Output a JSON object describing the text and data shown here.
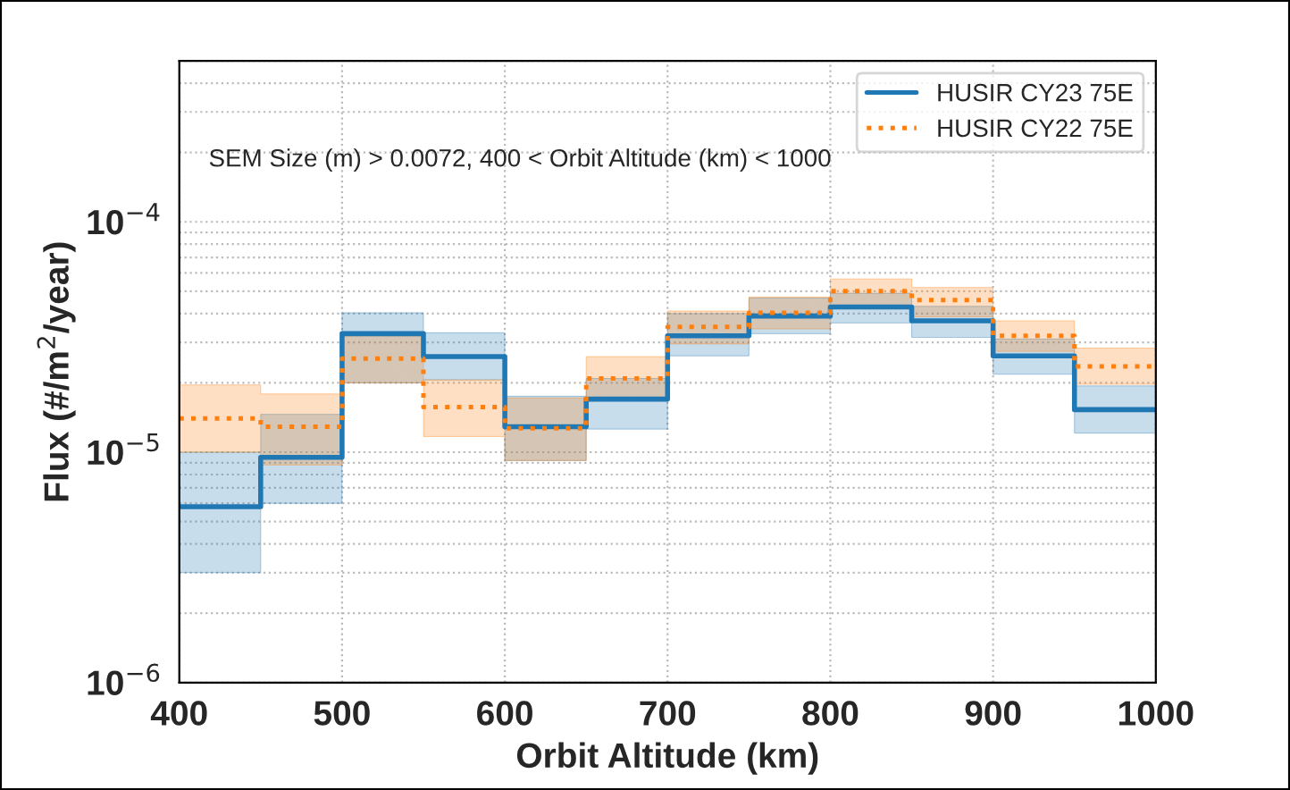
{
  "chart_data": {
    "type": "line",
    "xlabel": "Orbit Altitude (km)",
    "ylabel": "Flux (#/m$^{2}$/year)",
    "annotations": [
      "SEM Size (m) > 0.0072, 400 < Orbit Altitude (km) < 1000"
    ],
    "x": [
      400,
      450,
      450,
      500,
      500,
      550,
      550,
      600,
      600,
      650,
      650,
      700,
      700,
      750,
      750,
      800,
      800,
      850,
      850,
      900,
      900,
      950,
      950,
      1000
    ],
    "series": [
      {
        "name": "HUSIR CY23 75E",
        "color": "#1f77b4",
        "line_style": "solid",
        "values": [
          5.8e-06,
          5.8e-06,
          9.5e-06,
          9.5e-06,
          3.27e-05,
          3.27e-05,
          2.6e-05,
          2.6e-05,
          1.29e-05,
          1.29e-05,
          1.7e-05,
          1.7e-05,
          3.2e-05,
          3.2e-05,
          3.9e-05,
          3.9e-05,
          4.27e-05,
          4.27e-05,
          3.72e-05,
          3.72e-05,
          2.62e-05,
          2.62e-05,
          1.53e-05,
          1.53e-05
        ],
        "lower": [
          3e-06,
          3e-06,
          6e-06,
          6e-06,
          2e-05,
          2e-05,
          2.06e-05,
          2.06e-05,
          9.2e-06,
          9.2e-06,
          1.26e-05,
          1.26e-05,
          2.62e-05,
          2.62e-05,
          3.27e-05,
          3.27e-05,
          3.64e-05,
          3.64e-05,
          3.15e-05,
          3.15e-05,
          2.18e-05,
          2.18e-05,
          1.21e-05,
          1.21e-05
        ],
        "upper": [
          1e-05,
          1e-05,
          1.46e-05,
          1.46e-05,
          4.03e-05,
          4.03e-05,
          3.3e-05,
          3.3e-05,
          1.75e-05,
          1.75e-05,
          2.09e-05,
          2.09e-05,
          4e-05,
          4e-05,
          4.67e-05,
          4.67e-05,
          4.9e-05,
          4.9e-05,
          4.3e-05,
          4.3e-05,
          3.1e-05,
          3.1e-05,
          1.94e-05,
          1.94e-05
        ]
      },
      {
        "name": "HUSIR CY22 75E",
        "color": "#ff7f0e",
        "line_style": "dotted",
        "values": [
          1.4e-05,
          1.4e-05,
          1.29e-05,
          1.29e-05,
          2.55e-05,
          2.55e-05,
          1.57e-05,
          1.57e-05,
          1.27e-05,
          1.27e-05,
          2.09e-05,
          2.09e-05,
          3.5e-05,
          3.5e-05,
          4.03e-05,
          4.03e-05,
          5e-05,
          5e-05,
          4.58e-05,
          4.58e-05,
          3.2e-05,
          3.2e-05,
          2.36e-05,
          2.36e-05
        ],
        "lower": [
          1e-05,
          1e-05,
          8.8e-06,
          8.8e-06,
          2e-05,
          2e-05,
          1.17e-05,
          1.17e-05,
          9.2e-06,
          9.2e-06,
          1.7e-05,
          1.7e-05,
          2.95e-05,
          2.95e-05,
          3.43e-05,
          3.43e-05,
          4.19e-05,
          4.19e-05,
          3.87e-05,
          3.87e-05,
          2.74e-05,
          2.74e-05,
          1.97e-05,
          1.97e-05
        ],
        "upper": [
          1.96e-05,
          1.96e-05,
          1.79e-05,
          1.79e-05,
          3.2e-05,
          3.2e-05,
          2.06e-05,
          2.06e-05,
          1.72e-05,
          1.72e-05,
          2.6e-05,
          2.6e-05,
          4.1e-05,
          4.1e-05,
          4.72e-05,
          4.72e-05,
          5.65e-05,
          5.65e-05,
          5.19e-05,
          5.19e-05,
          3.72e-05,
          3.72e-05,
          2.83e-05,
          2.83e-05
        ]
      }
    ],
    "log": "y",
    "xlim": [
      400,
      1000
    ],
    "xticks": [
      400,
      500,
      600,
      700,
      800,
      900,
      1000
    ],
    "ylim": [
      1e-06,
      0.0005
    ],
    "yticks": [
      {
        "value": 1e-06,
        "label": "10$^{−6}$"
      },
      {
        "value": 1e-05,
        "label": "10$^{−5}$"
      },
      {
        "value": 0.0001,
        "label": "10$^{−4}$"
      }
    ],
    "grid": true,
    "legend": "top right"
  }
}
